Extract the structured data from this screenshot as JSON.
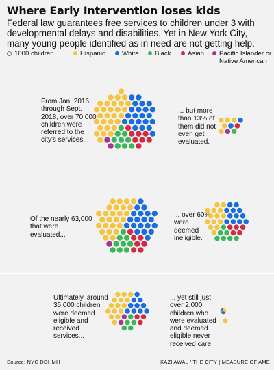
{
  "title": "Where Early Intervention loses kids",
  "subtitle": "Federal law guarantees free services to children under 3 with developmental delays and disabilities. Yet in New York City, many young people identified as in need are not getting help.",
  "legend": {
    "unit_label": "1000 children",
    "items": [
      {
        "label": "Hispanic",
        "color": "#f4c542"
      },
      {
        "label": "White",
        "color": "#1a6de0"
      },
      {
        "label": "Black",
        "color": "#3db559"
      },
      {
        "label": "Asian",
        "color": "#d42a40"
      },
      {
        "label": "Pacific Islander or Native American",
        "color": "#a7358f"
      }
    ]
  },
  "notes": {
    "referred": "From Jan. 2016 through Sept. 2018, over 70,000 children were referred to the city's services...",
    "not_evaluated": "... but more than 13% of them did not even get evaluated.",
    "evaluated": "Of the nearly 63,000 that were evaluated...",
    "ineligible": "... over 60% were deemed ineligible.",
    "received": "Ultimately, around 35,000 children were deemed eligible and received services...",
    "no_care": "... yet still just over 2,000 children who were evaluated and deemed eligible never received care."
  },
  "footer": {
    "source": "Source: NYC DOHMH",
    "credit": "KAZI AWAL / THE CITY | MEASURE OF AME"
  },
  "chart_data": {
    "type": "dot-cluster",
    "unit": "1000 children",
    "groups": [
      {
        "id": "referred",
        "total": 70,
        "Hispanic": 29,
        "White": 22,
        "Black": 9,
        "Asian": 8,
        "Pacific Islander or Native American": 2
      },
      {
        "id": "not_evaluated",
        "total": 10,
        "Hispanic": 5,
        "White": 2,
        "Black": 1,
        "Asian": 1,
        "Pacific Islander or Native American": 1
      },
      {
        "id": "evaluated",
        "total": 63,
        "Hispanic": 26,
        "White": 20,
        "Black": 9,
        "Asian": 7,
        "Pacific Islander or Native American": 1
      },
      {
        "id": "ineligible",
        "total": 38,
        "Hispanic": 14,
        "White": 12,
        "Black": 7,
        "Asian": 5,
        "Pacific Islander or Native American": 0
      },
      {
        "id": "received",
        "total": 35,
        "Hispanic": 15,
        "White": 10,
        "Black": 5,
        "Asian": 3,
        "Pacific Islander or Native American": 2
      },
      {
        "id": "no_care",
        "total": 2,
        "Hispanic": 1,
        "White": 0.5,
        "Black": 0.25,
        "Asian": 0,
        "Pacific Islander or Native American": 0.25
      }
    ]
  }
}
